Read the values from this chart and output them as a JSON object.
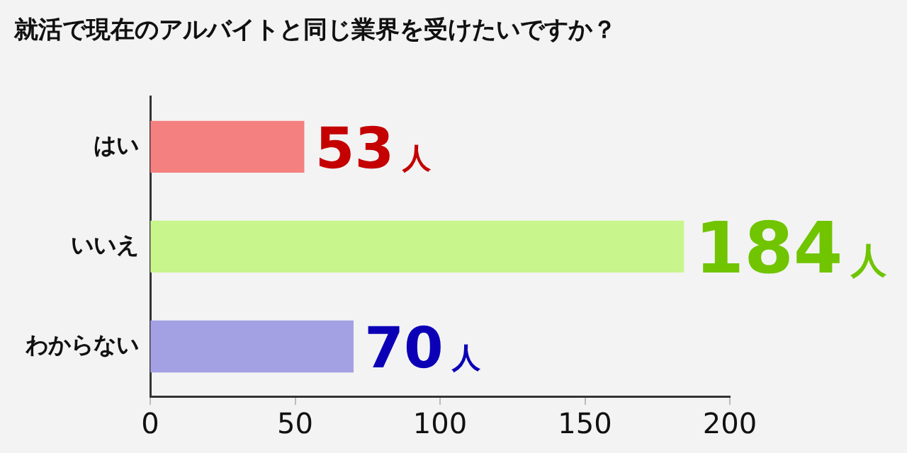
{
  "chart_data": {
    "type": "bar",
    "orientation": "horizontal",
    "title": "就活で現在のアルバイトと同じ業界を受けたいですか？",
    "categories": [
      "はい",
      "いいえ",
      "わからない"
    ],
    "values": [
      53,
      184,
      70
    ],
    "colors": [
      "#f58080",
      "#c8f58c",
      "#a4a0e4"
    ],
    "value_labels": [
      "53人",
      "184人",
      "70人"
    ],
    "xlim": [
      0,
      200
    ],
    "xticks": [
      0,
      50,
      100,
      150,
      200
    ],
    "grid": false,
    "legend": false
  }
}
